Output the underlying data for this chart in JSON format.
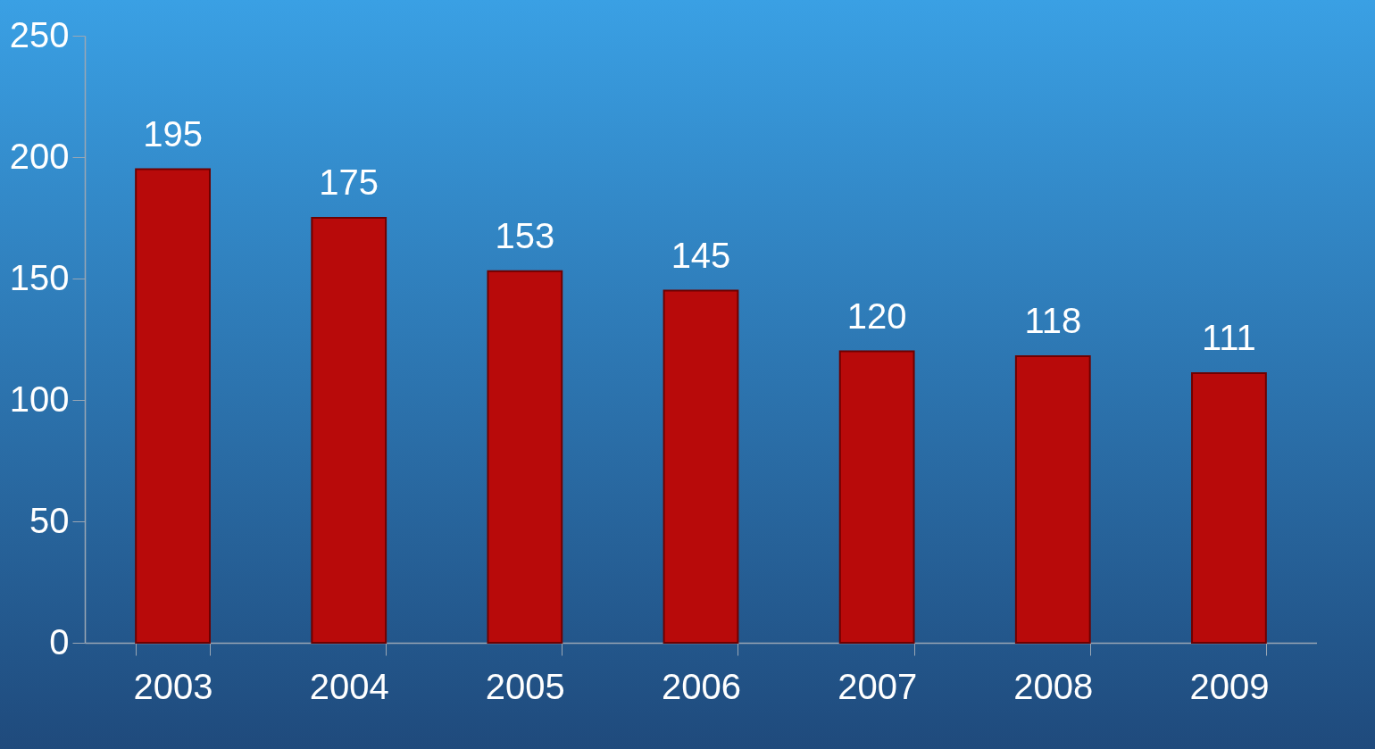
{
  "chart_data": {
    "type": "bar",
    "categories": [
      "2003",
      "2004",
      "2005",
      "2006",
      "2007",
      "2008",
      "2009"
    ],
    "values": [
      195,
      175,
      153,
      145,
      120,
      118,
      111
    ],
    "color": "#b80a0a",
    "ylim": [
      0,
      250
    ],
    "yticks": [
      0,
      50,
      100,
      150,
      200,
      250
    ],
    "data_labels": true
  }
}
